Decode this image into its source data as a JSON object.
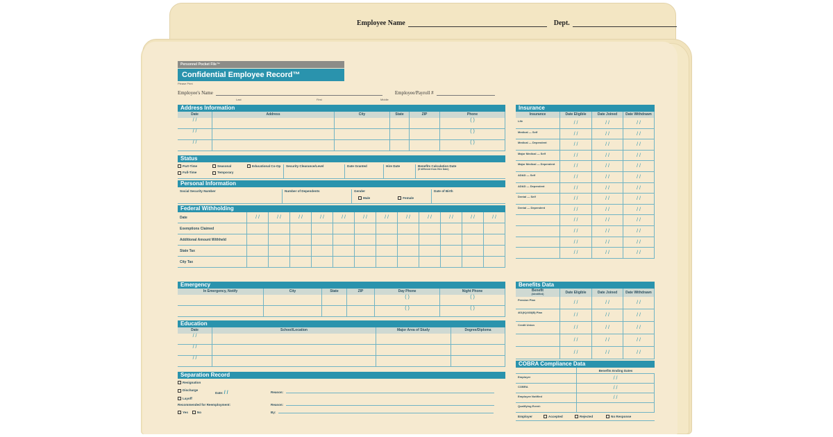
{
  "tab": {
    "employee_name_label": "Employee Name",
    "dept_label": "Dept."
  },
  "header": {
    "pocket_file": "Personnel Pocket File™",
    "title": "Confidential Employee Record™",
    "please_print": "Please Print",
    "employee_name_label": "Employee's Name",
    "sub_last": "Last",
    "sub_first": "First",
    "sub_middle": "Middle",
    "payroll_label": "Employee/Payroll #"
  },
  "address": {
    "title": "Address Information",
    "columns": [
      "Date",
      "Address",
      "City",
      "State",
      "ZIP",
      "Phone"
    ],
    "date_mark": "/   /",
    "phone_mark": "(      )"
  },
  "status": {
    "title": "Status",
    "options": [
      "Part-Time",
      "Full-Time",
      "Seasonal",
      "Temporary",
      "Educational Co-Op"
    ],
    "fields": [
      "Security Clearance/Level",
      "Date Granted",
      "Hire Date",
      "Benefits Calculation Date"
    ],
    "benefits_note": "(if different from Hire Date)"
  },
  "personal": {
    "title": "Personal Information",
    "fields": [
      "Social Security Number",
      "Number of Dependents",
      "Gender",
      "Date of Birth"
    ],
    "gender_options": [
      "Male",
      "Female"
    ]
  },
  "federal": {
    "title": "Federal Withholding",
    "rows": [
      "Date",
      "Exemptions Claimed",
      "Additional Amount Withheld",
      "State Tax",
      "City Tax"
    ]
  },
  "emergency": {
    "title": "Emergency",
    "columns": [
      "In Emergency, Notify",
      "City",
      "State",
      "ZIP",
      "Day Phone",
      "Night Phone"
    ]
  },
  "education": {
    "title": "Education",
    "columns": [
      "Date",
      "School/Location",
      "Major Area of Study",
      "Degree/Diploma"
    ]
  },
  "separation": {
    "title": "Separation Record",
    "options": [
      "Resignation",
      "Discharge",
      "Layoff"
    ],
    "date_label": "Date:",
    "reason_label": "Reason:",
    "recommended_label": "Recommended for Reemployment:",
    "yes": "Yes",
    "no": "No",
    "by_label": "By:"
  },
  "insurance": {
    "title": "Insurance",
    "columns": [
      "Insurance",
      "Date Eligible",
      "Date Joined",
      "Date Withdrawn"
    ],
    "rows": [
      "Life",
      "Medical — Self",
      "Medical — Dependent",
      "Major Medical — Self",
      "Major Medical — Dependent",
      "AD&D — Self",
      "AD&D — Dependent",
      "Dental — Self",
      "Dental — Dependent"
    ]
  },
  "benefits": {
    "title": "Benefits Data",
    "columns": [
      "Benefit",
      "Date Eligible",
      "Date Joined",
      "Date Withdrawn"
    ],
    "benefit_sub": "(Identified)",
    "rows": [
      "Pension Plan",
      "401(K)/403(B) Plan",
      "Credit Union"
    ]
  },
  "cobra": {
    "title": "COBRA Compliance Data",
    "column": "Benefits Ending Dates",
    "rows": [
      "Employer",
      "COBRA",
      "Employee Notified",
      "Qualifying Event:"
    ],
    "footer_label": "Employer",
    "footer_options": [
      "Accepted",
      "Rejected",
      "No Response"
    ]
  }
}
